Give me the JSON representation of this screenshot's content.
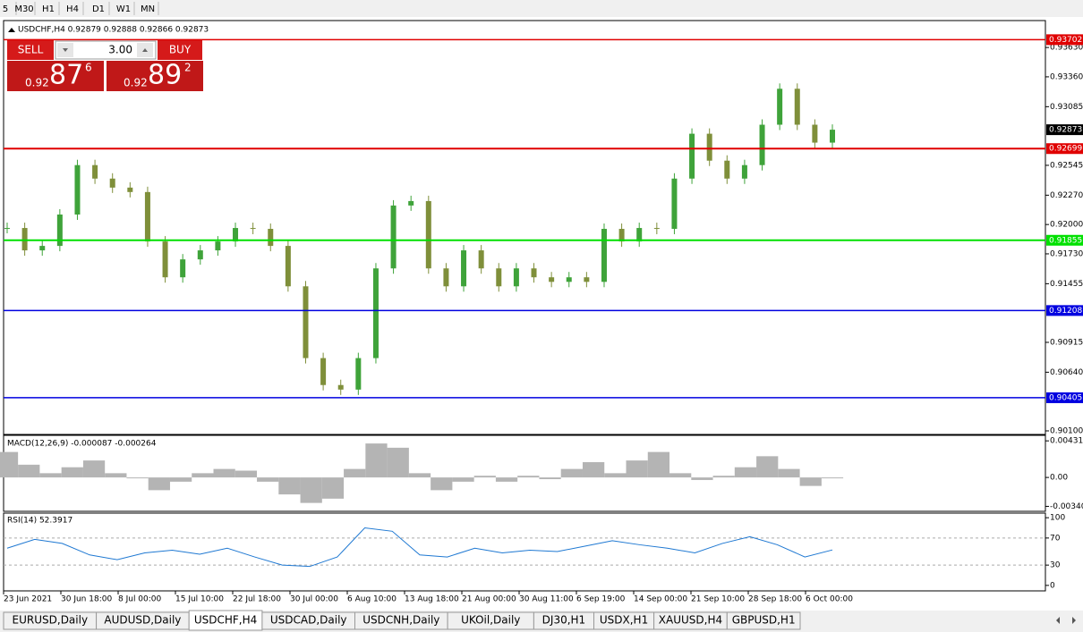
{
  "toolbar": {
    "timeframes": [
      "5",
      "M30",
      "H1",
      "H4",
      "D1",
      "W1",
      "MN"
    ]
  },
  "trade_panel": {
    "sell": "SELL",
    "lots": "3.00",
    "buy": "BUY",
    "bid": {
      "big_figure": "0.92",
      "pips": "87",
      "fraction": "6"
    },
    "ask": {
      "big_figure": "0.92",
      "pips": "89",
      "fraction": "2"
    }
  },
  "price_chart": {
    "header": "USDCHF,H4  0.92879 0.92888 0.92866 0.92873",
    "up_color": "#3fa33a",
    "down_color": "#7f8f3a",
    "ylim": [
      0.90067,
      0.93878
    ],
    "yticks": [
      {
        "value": 0.9363,
        "label": "0.93630"
      },
      {
        "value": 0.9336,
        "label": "0.93360"
      },
      {
        "value": 0.93085,
        "label": "0.93085"
      },
      {
        "value": 0.92545,
        "label": "0.92545"
      },
      {
        "value": 0.9227,
        "label": "0.92270"
      },
      {
        "value": 0.92,
        "label": "0.92000"
      },
      {
        "value": 0.9173,
        "label": "0.91730"
      },
      {
        "value": 0.91455,
        "label": "0.91455"
      },
      {
        "value": 0.90915,
        "label": "0.90915"
      },
      {
        "value": 0.9064,
        "label": "0.90640"
      },
      {
        "value": 0.901,
        "label": "0.90100"
      }
    ],
    "levels": [
      {
        "value": 0.93702,
        "label": "0.93702",
        "color": "#e00000"
      },
      {
        "value": 0.92699,
        "label": "0.92699",
        "color": "#e00000"
      },
      {
        "value": 0.91855,
        "label": "0.91855",
        "color": "#00e000"
      },
      {
        "value": 0.91208,
        "label": "0.91208",
        "color": "#0000e0"
      },
      {
        "value": 0.90405,
        "label": "0.90405",
        "color": "#0000e0"
      }
    ],
    "current_price": {
      "value": 0.92873,
      "label": "0.92873"
    },
    "closes": [
      0.91968,
      0.91762,
      0.91803,
      0.92092,
      0.92547,
      0.92423,
      0.9234,
      0.92299,
      0.91844,
      0.91514,
      0.91679,
      0.91762,
      0.91844,
      0.91968,
      0.9196,
      0.91803,
      0.91431,
      0.9077,
      0.90522,
      0.9048,
      0.9077,
      0.91596,
      0.92175,
      0.92216,
      0.91596,
      0.91431,
      0.91762,
      0.91596,
      0.91431,
      0.91596,
      0.91514,
      0.91472,
      0.91514,
      0.91472,
      0.9196,
      0.91844,
      0.91968,
      0.9196,
      0.92423,
      0.92836,
      0.92588,
      0.92423,
      0.92547,
      0.92919,
      0.9325,
      0.92919,
      0.92754,
      0.92873
    ]
  },
  "macd": {
    "label": "MACD(12,26,9) -0.000087 -0.000264",
    "color": "#b4b4b4",
    "ylim": [
      -0.00399,
      0.00496
    ],
    "yticks": [
      {
        "value": 0.00431,
        "label": "0.00431"
      },
      {
        "value": 0,
        "label": "0.00"
      },
      {
        "value": -0.003405,
        "label": "-0.003405"
      }
    ],
    "values": [
      0.003,
      0.0015,
      0.0005,
      0.0012,
      0.002,
      0.0005,
      0,
      -0.0015,
      -0.0005,
      0.0005,
      0.001,
      0.0008,
      -0.0005,
      -0.002,
      -0.003,
      -0.0025,
      0.001,
      0.004,
      0.0035,
      0.0005,
      -0.0015,
      -0.0005,
      0.0002,
      -0.0005,
      0.0002,
      -0.0002,
      0.001,
      0.0018,
      0.0005,
      0.002,
      0.003,
      0.0005,
      -0.0003,
      0.0002,
      0.0012,
      0.0025,
      0.001,
      -0.001,
      -0.0001
    ]
  },
  "rsi": {
    "label": "RSI(14) 52.3917",
    "color": "#1e78d2",
    "ylim": [
      -8.1,
      106.8
    ],
    "yticks": [
      100,
      70,
      30,
      0
    ],
    "levels": [
      70,
      30
    ],
    "values": [
      55,
      68,
      62,
      45,
      38,
      48,
      52,
      46,
      55,
      42,
      30,
      28,
      42,
      85,
      80,
      45,
      42,
      55,
      48,
      52,
      50,
      58,
      66,
      60,
      55,
      48,
      62,
      72,
      60,
      42,
      52.39
    ]
  },
  "time_axis": [
    "23 Jun 2021",
    "30 Jun 18:00",
    "8 Jul 00:00",
    "15 Jul 10:00",
    "22 Jul 18:00",
    "30 Jul 00:00",
    "6 Aug 10:00",
    "13 Aug 18:00",
    "21 Aug 00:00",
    "30 Aug 11:00",
    "6 Sep 19:00",
    "14 Sep 00:00",
    "21 Sep 10:00",
    "28 Sep 18:00",
    "6 Oct 00:00"
  ],
  "tabs": [
    "EURUSD,Daily",
    "AUDUSD,Daily",
    "USDCHF,H4",
    "USDCAD,Daily",
    "USDCNH,Daily",
    "UKOil,Daily",
    "DJ30,H1",
    "USDX,H1",
    "XAUUSD,H4",
    "GBPUSD,H1"
  ],
  "active_tab": 2
}
